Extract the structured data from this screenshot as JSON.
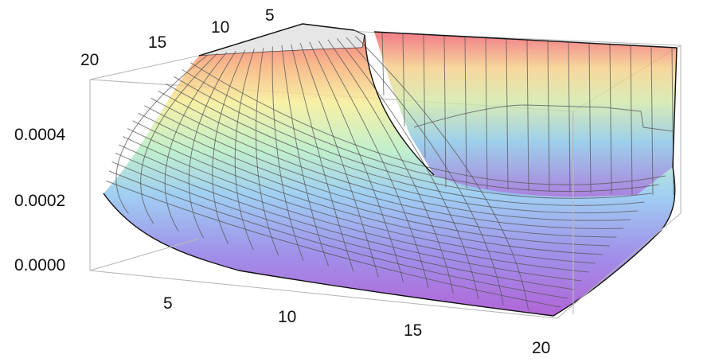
{
  "chart_data": {
    "type": "surface3d",
    "title": "",
    "x_axis": {
      "label": "",
      "range": [
        1,
        20
      ],
      "ticks": [
        "5",
        "10",
        "15",
        "20"
      ]
    },
    "y_axis": {
      "label": "",
      "range": [
        1,
        20
      ],
      "ticks": [
        "5",
        "10",
        "15",
        "20"
      ]
    },
    "z_axis": {
      "label": "",
      "range": [
        0,
        0.0006
      ],
      "ticks": [
        "0.0000",
        "0.0002",
        "0.0004"
      ]
    },
    "colormap": "rainbow (purple = low, red = high), semi-transparent",
    "mesh": "on",
    "bounding_box": "on",
    "surface_samples": {
      "x": [
        1,
        5,
        10,
        15,
        20
      ],
      "y": [
        1,
        5,
        10,
        15,
        20
      ],
      "z": [
        [
          0.0006,
          0.0006,
          0.0006,
          0.0006,
          0.0006
        ],
        [
          0.00022,
          8e-05,
          5e-05,
          0.0001,
          0.0006
        ],
        [
          0.0001,
          4e-05,
          2e-05,
          3e-05,
          0.0006
        ],
        [
          6e-05,
          2e-05,
          1e-05,
          1e-05,
          0.0006
        ],
        [
          3e-05,
          1e-05,
          0.0,
          0.0,
          0.0006
        ]
      ]
    }
  }
}
